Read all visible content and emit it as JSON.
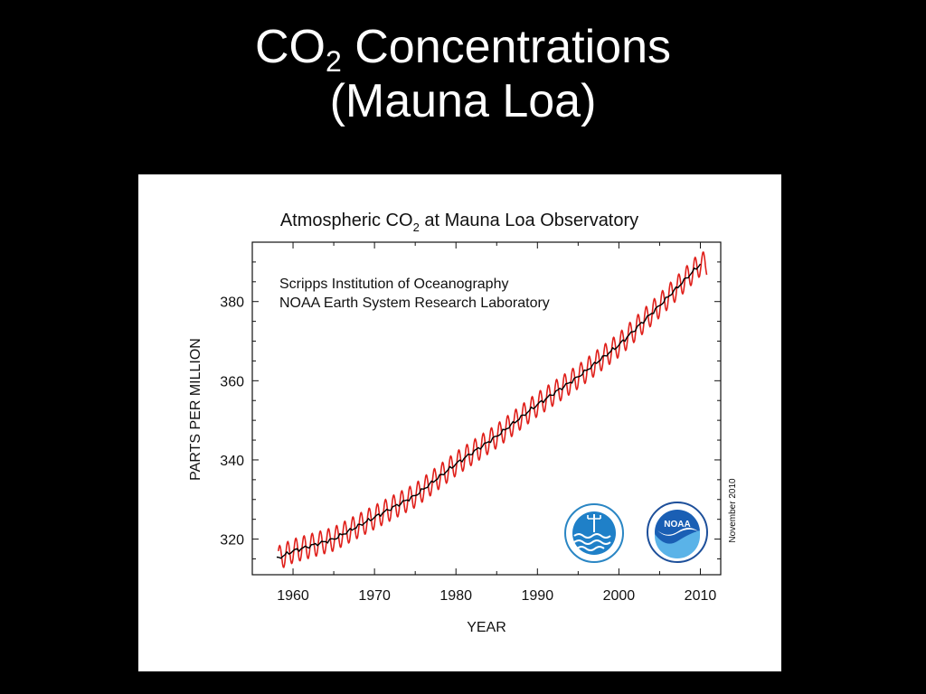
{
  "slide": {
    "title_prefix": "CO",
    "title_subscript": "2",
    "title_suffix": " Concentrations",
    "title_line2": "(Mauna Loa)"
  },
  "figure": {
    "institutions": [
      "Scripps Institution of Oceanography",
      "NOAA Earth System Research Laboratory"
    ],
    "date_note": "November 2010",
    "logos": [
      "scripps-logo",
      "noaa-logo"
    ]
  },
  "chart_data": {
    "type": "line",
    "title_prefix": "Atmospheric CO",
    "title_subscript": "2",
    "title_suffix": " at Mauna Loa Observatory",
    "xlabel": "YEAR",
    "ylabel": "PARTS PER MILLION",
    "xlim": [
      1955,
      2012.5
    ],
    "ylim": [
      311,
      395
    ],
    "xticks": [
      1960,
      1970,
      1980,
      1990,
      2000,
      2010
    ],
    "yticks": [
      320,
      340,
      360,
      380
    ],
    "grid": false,
    "colors": {
      "monthly": "#e0201b",
      "annual": "#000000"
    },
    "series": [
      {
        "id": "monthly",
        "style": "seasonal",
        "seasonal_amplitude_ppm": 3,
        "x_range": [
          1958.2,
          2010.8
        ]
      },
      {
        "id": "annual",
        "style": "trend",
        "x": [
          1958,
          1960,
          1965,
          1970,
          1975,
          1980,
          1985,
          1990,
          1995,
          2000,
          2005,
          2010
        ],
        "y": [
          315,
          317,
          320,
          325.5,
          331,
          339,
          346,
          354,
          361,
          369,
          379,
          389.5
        ]
      }
    ]
  }
}
